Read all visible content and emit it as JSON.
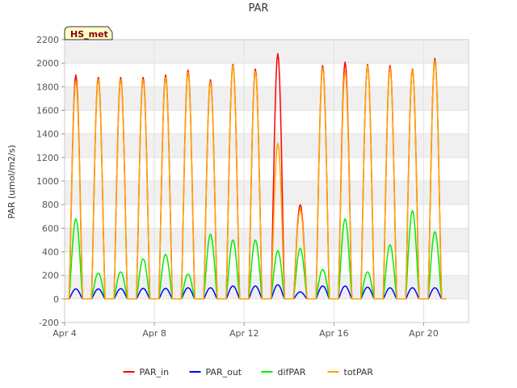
{
  "chart_data": {
    "type": "line",
    "title": "PAR",
    "xlabel": "",
    "ylabel": "PAR (umol/m2/s)",
    "badge": "HS_met",
    "ylim": [
      -200,
      2200
    ],
    "yticks": [
      -200,
      0,
      200,
      400,
      600,
      800,
      1000,
      1200,
      1400,
      1600,
      1800,
      2000,
      2200
    ],
    "xlim_days": [
      4,
      22
    ],
    "xticks": [
      {
        "day": 4,
        "label": "Apr 4"
      },
      {
        "day": 8,
        "label": "Apr 8"
      },
      {
        "day": 12,
        "label": "Apr 12"
      },
      {
        "day": 16,
        "label": "Apr 16"
      },
      {
        "day": 20,
        "label": "Apr 20"
      }
    ],
    "colors": {
      "PAR_in": "#ff0000",
      "PAR_out": "#0000ff",
      "difPAR": "#00ee00",
      "totPAR": "#ffa500",
      "band": "#f0f0f0",
      "badge_fill": "#ffffcc"
    },
    "days": [
      4.5,
      5.5,
      6.5,
      7.5,
      8.5,
      9.5,
      10.5,
      11.5,
      12.5,
      13.5,
      14.5,
      15.5,
      16.5,
      17.5,
      18.5,
      19.5,
      20.5
    ],
    "series": [
      {
        "name": "PAR_in",
        "daily_peak": [
          1900,
          1880,
          1880,
          1880,
          1900,
          1940,
          1860,
          1990,
          1950,
          2080,
          800,
          1980,
          2010,
          1990,
          1980,
          1950,
          2040
        ]
      },
      {
        "name": "PAR_out",
        "daily_peak": [
          85,
          85,
          88,
          90,
          90,
          95,
          95,
          110,
          110,
          120,
          60,
          110,
          110,
          100,
          95,
          95,
          95
        ]
      },
      {
        "name": "difPAR",
        "daily_peak": [
          680,
          220,
          230,
          340,
          380,
          210,
          550,
          500,
          500,
          410,
          430,
          250,
          680,
          230,
          460,
          750,
          570
        ]
      },
      {
        "name": "totPAR",
        "daily_peak": [
          1850,
          1860,
          1860,
          1860,
          1880,
          1920,
          1840,
          1980,
          1930,
          1320,
          760,
          1960,
          1930,
          1980,
          1960,
          1940,
          2020
        ]
      }
    ],
    "legend": [
      "PAR_in",
      "PAR_out",
      "difPAR",
      "totPAR"
    ],
    "legend_position": "bottom-center",
    "grid": true
  }
}
